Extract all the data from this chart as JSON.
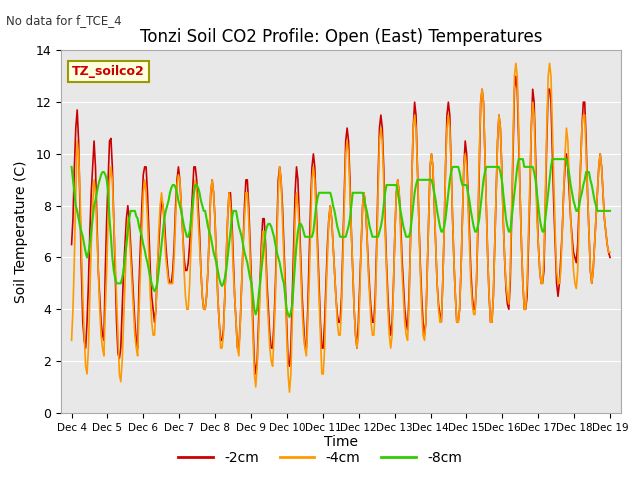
{
  "title": "Tonzi Soil CO2 Profile: Open (East) Temperatures",
  "subtitle": "No data for f_TCE_4",
  "xlabel": "Time",
  "ylabel": "Soil Temperature (C)",
  "legend_label": "TZ_soilco2",
  "series_labels": [
    "-2cm",
    "-4cm",
    "-8cm"
  ],
  "series_colors": [
    "#cc0000",
    "#ff9900",
    "#33cc00"
  ],
  "ylim": [
    0,
    14
  ],
  "xtick_labels": [
    "Dec 4",
    "Dec 5",
    "Dec 6",
    "Dec 7",
    "Dec 8",
    "Dec 9",
    "Dec 10",
    "Dec 11",
    "Dec 12",
    "Dec 13",
    "Dec 14",
    "Dec 15",
    "Dec 16",
    "Dec 17",
    "Dec 18",
    "Dec 19"
  ],
  "background_color": "#ffffff",
  "plot_bg_color": "#e8e8e8",
  "grid_color": "#ffffff",
  "t_2cm": [
    6.5,
    7.5,
    9.5,
    11.0,
    11.7,
    10.5,
    8.0,
    5.5,
    3.5,
    2.8,
    2.5,
    3.5,
    5.0,
    7.0,
    8.5,
    9.5,
    10.5,
    9.5,
    7.5,
    5.5,
    4.5,
    3.5,
    3.0,
    2.8,
    5.5,
    7.5,
    9.0,
    10.5,
    10.6,
    9.5,
    7.5,
    5.5,
    3.5,
    2.3,
    2.1,
    2.5,
    4.0,
    5.5,
    6.5,
    7.5,
    8.0,
    7.5,
    6.5,
    5.5,
    4.5,
    3.5,
    2.8,
    2.5,
    5.0,
    6.5,
    8.0,
    9.2,
    9.5,
    9.5,
    8.5,
    7.0,
    5.5,
    4.5,
    4.0,
    3.5,
    4.0,
    5.5,
    6.5,
    7.5,
    8.2,
    8.0,
    7.5,
    6.5,
    5.8,
    5.2,
    5.0,
    5.0,
    5.5,
    6.5,
    8.0,
    9.0,
    9.5,
    9.0,
    8.0,
    7.0,
    6.0,
    5.5,
    5.5,
    5.8,
    6.5,
    7.5,
    8.5,
    9.5,
    9.5,
    9.0,
    8.0,
    7.0,
    5.5,
    4.5,
    4.0,
    4.0,
    4.5,
    5.5,
    7.0,
    8.5,
    9.0,
    8.5,
    7.5,
    6.0,
    4.5,
    3.5,
    2.8,
    2.8,
    3.2,
    4.5,
    6.0,
    7.5,
    8.5,
    8.5,
    7.5,
    6.0,
    4.5,
    3.5,
    2.5,
    2.5,
    3.5,
    5.0,
    6.5,
    8.0,
    9.0,
    9.0,
    8.0,
    6.5,
    5.0,
    3.5,
    2.0,
    1.5,
    2.0,
    3.5,
    5.0,
    6.5,
    7.5,
    7.5,
    6.5,
    5.0,
    4.0,
    3.0,
    2.5,
    2.5,
    3.5,
    5.0,
    7.0,
    9.0,
    9.5,
    9.0,
    8.0,
    6.5,
    5.0,
    3.5,
    2.0,
    1.8,
    2.5,
    4.5,
    6.5,
    8.5,
    9.5,
    9.0,
    7.5,
    6.0,
    4.5,
    3.5,
    2.5,
    2.5,
    4.0,
    6.0,
    8.0,
    9.5,
    10.0,
    9.5,
    8.0,
    6.5,
    5.0,
    3.5,
    2.5,
    2.5,
    3.5,
    5.0,
    6.5,
    7.5,
    8.0,
    7.5,
    6.5,
    5.5,
    4.5,
    3.8,
    3.5,
    3.5,
    4.5,
    6.5,
    8.5,
    10.5,
    11.0,
    10.5,
    9.0,
    7.0,
    5.5,
    4.0,
    3.0,
    2.5,
    3.5,
    5.0,
    6.5,
    8.0,
    8.5,
    8.0,
    7.0,
    5.8,
    4.8,
    4.0,
    3.5,
    3.5,
    4.5,
    6.5,
    9.0,
    11.0,
    11.5,
    11.0,
    9.5,
    7.5,
    5.8,
    4.5,
    3.5,
    3.0,
    3.5,
    5.0,
    7.0,
    8.5,
    9.0,
    8.5,
    7.5,
    6.0,
    5.0,
    4.0,
    3.5,
    3.2,
    4.5,
    6.5,
    9.0,
    11.0,
    12.0,
    11.5,
    9.5,
    7.5,
    5.8,
    4.5,
    3.5,
    3.0,
    3.5,
    5.5,
    7.5,
    9.5,
    10.0,
    9.5,
    8.0,
    6.5,
    5.0,
    4.2,
    3.8,
    3.5,
    5.0,
    7.0,
    9.5,
    11.5,
    12.0,
    11.5,
    9.5,
    7.5,
    5.8,
    4.5,
    3.5,
    3.5,
    4.0,
    5.5,
    7.5,
    9.5,
    10.5,
    10.0,
    8.5,
    7.0,
    5.5,
    4.5,
    4.0,
    4.0,
    5.0,
    7.0,
    9.5,
    12.0,
    12.5,
    12.0,
    10.0,
    8.0,
    6.0,
    4.5,
    3.5,
    3.5,
    4.5,
    6.5,
    8.5,
    10.5,
    11.5,
    11.0,
    9.5,
    7.5,
    6.0,
    4.8,
    4.2,
    4.0,
    5.0,
    7.5,
    10.0,
    12.5,
    13.0,
    12.5,
    10.5,
    8.5,
    6.5,
    5.0,
    4.0,
    4.0,
    4.5,
    6.5,
    8.5,
    11.0,
    12.5,
    12.0,
    10.0,
    8.0,
    6.5,
    5.5,
    5.0,
    5.0,
    5.5,
    8.0,
    10.5,
    12.5,
    12.5,
    12.0,
    10.0,
    8.0,
    6.5,
    5.0,
    4.5,
    5.0,
    6.0,
    7.0,
    8.5,
    9.5,
    10.0,
    9.5,
    8.5,
    7.5,
    6.8,
    6.2,
    6.0,
    5.8,
    6.5,
    8.0,
    9.5,
    11.0,
    12.0,
    12.0,
    10.5,
    8.5,
    7.0,
    5.5,
    5.0,
    5.5,
    6.5,
    7.5,
    8.5,
    9.5,
    10.0,
    9.5,
    8.5,
    7.5,
    7.0,
    6.5,
    6.2,
    6.0
  ],
  "t_4cm": [
    2.8,
    4.0,
    6.0,
    8.5,
    10.5,
    10.0,
    8.5,
    6.5,
    4.5,
    3.0,
    1.8,
    1.5,
    2.5,
    4.5,
    6.5,
    8.0,
    9.0,
    8.5,
    7.0,
    5.5,
    4.0,
    3.0,
    2.5,
    2.2,
    4.0,
    5.5,
    7.5,
    9.0,
    9.5,
    9.0,
    7.5,
    6.0,
    4.5,
    3.0,
    1.5,
    1.2,
    2.0,
    3.5,
    5.0,
    6.5,
    7.5,
    7.0,
    6.0,
    5.0,
    4.0,
    3.0,
    2.5,
    2.2,
    4.0,
    5.5,
    7.0,
    8.5,
    9.0,
    8.5,
    7.5,
    6.0,
    4.5,
    3.5,
    3.0,
    3.0,
    4.0,
    5.5,
    7.0,
    8.0,
    8.5,
    8.0,
    7.0,
    6.0,
    5.5,
    5.0,
    5.0,
    5.0,
    5.0,
    6.0,
    7.5,
    8.8,
    9.2,
    9.0,
    8.0,
    7.0,
    5.5,
    4.5,
    4.0,
    4.0,
    5.0,
    6.5,
    7.5,
    8.5,
    9.0,
    8.5,
    7.5,
    6.5,
    5.5,
    4.5,
    4.0,
    4.0,
    4.5,
    5.5,
    7.0,
    8.5,
    9.0,
    8.5,
    7.5,
    6.0,
    4.5,
    3.5,
    2.5,
    2.5,
    3.0,
    4.5,
    6.0,
    7.5,
    8.5,
    8.0,
    7.0,
    5.5,
    4.5,
    3.5,
    2.5,
    2.2,
    3.5,
    5.0,
    6.5,
    7.5,
    8.5,
    8.5,
    7.5,
    6.0,
    4.5,
    3.0,
    1.5,
    1.0,
    1.8,
    3.0,
    4.5,
    6.0,
    7.0,
    7.0,
    6.0,
    4.5,
    3.5,
    2.5,
    2.0,
    1.8,
    3.0,
    4.5,
    6.5,
    8.5,
    9.5,
    9.0,
    7.5,
    6.0,
    4.5,
    3.0,
    1.5,
    0.8,
    1.5,
    3.5,
    5.5,
    7.5,
    8.5,
    8.0,
    7.0,
    5.5,
    4.0,
    3.0,
    2.5,
    2.2,
    3.5,
    5.0,
    7.0,
    9.0,
    9.5,
    9.0,
    7.5,
    6.0,
    4.5,
    3.0,
    1.5,
    1.5,
    2.5,
    4.5,
    6.0,
    7.5,
    8.0,
    7.5,
    6.5,
    5.5,
    4.5,
    3.5,
    3.0,
    3.0,
    4.0,
    6.0,
    8.0,
    10.0,
    10.5,
    10.0,
    8.5,
    7.0,
    5.5,
    4.0,
    3.0,
    2.5,
    3.0,
    4.5,
    6.5,
    8.0,
    8.5,
    8.0,
    7.0,
    5.5,
    4.5,
    3.5,
    3.0,
    3.0,
    4.0,
    6.0,
    8.5,
    10.5,
    11.0,
    10.5,
    9.0,
    7.0,
    5.5,
    4.0,
    3.0,
    2.5,
    3.0,
    5.0,
    7.0,
    8.5,
    9.0,
    8.5,
    7.0,
    5.5,
    4.5,
    3.5,
    3.0,
    2.8,
    4.0,
    6.5,
    9.0,
    11.0,
    11.5,
    11.0,
    9.5,
    7.5,
    5.5,
    4.0,
    3.0,
    2.8,
    3.5,
    5.5,
    7.5,
    9.5,
    10.0,
    9.5,
    8.0,
    6.5,
    5.0,
    4.0,
    3.5,
    3.5,
    5.0,
    7.0,
    9.5,
    11.0,
    11.5,
    11.0,
    9.5,
    7.5,
    5.8,
    4.5,
    3.5,
    3.5,
    4.0,
    5.5,
    7.5,
    9.5,
    10.0,
    9.5,
    8.0,
    6.5,
    5.0,
    4.2,
    3.8,
    3.8,
    5.0,
    7.5,
    10.0,
    12.0,
    12.5,
    12.0,
    10.0,
    8.0,
    6.0,
    4.5,
    3.5,
    3.5,
    4.5,
    6.5,
    8.5,
    10.5,
    11.5,
    11.0,
    9.5,
    7.5,
    6.0,
    5.0,
    4.5,
    4.2,
    5.5,
    8.0,
    10.5,
    13.0,
    13.5,
    13.0,
    11.0,
    8.5,
    6.5,
    5.0,
    4.0,
    4.0,
    5.0,
    7.0,
    9.0,
    11.0,
    12.0,
    11.5,
    9.5,
    7.5,
    6.5,
    5.5,
    5.0,
    5.0,
    6.0,
    8.5,
    11.0,
    13.0,
    13.5,
    13.0,
    11.0,
    9.0,
    7.0,
    5.5,
    5.0,
    5.0,
    5.5,
    7.0,
    8.5,
    10.0,
    11.0,
    10.5,
    9.0,
    7.5,
    6.5,
    5.5,
    5.0,
    4.8,
    5.5,
    7.5,
    9.5,
    11.0,
    11.5,
    11.5,
    10.0,
    8.5,
    7.0,
    5.5,
    5.0,
    5.5,
    6.5,
    7.5,
    8.5,
    9.5,
    10.0,
    9.5,
    8.5,
    7.5,
    7.0,
    6.5,
    6.2,
    6.2
  ],
  "t_8cm": [
    9.5,
    9.0,
    8.5,
    8.0,
    7.8,
    7.5,
    7.2,
    7.0,
    6.8,
    6.5,
    6.2,
    6.0,
    6.2,
    6.5,
    7.0,
    7.5,
    8.0,
    8.2,
    8.5,
    8.8,
    9.0,
    9.2,
    9.3,
    9.3,
    9.2,
    9.0,
    8.5,
    7.5,
    6.8,
    6.0,
    5.5,
    5.2,
    5.0,
    5.0,
    5.0,
    5.0,
    5.2,
    5.5,
    6.0,
    6.5,
    7.0,
    7.5,
    7.8,
    7.8,
    7.8,
    7.8,
    7.6,
    7.5,
    7.2,
    7.0,
    6.8,
    6.5,
    6.3,
    6.0,
    5.8,
    5.5,
    5.2,
    5.0,
    4.8,
    4.7,
    4.8,
    5.0,
    5.5,
    6.0,
    6.5,
    7.0,
    7.5,
    7.8,
    8.0,
    8.2,
    8.5,
    8.7,
    8.8,
    8.8,
    8.7,
    8.5,
    8.2,
    8.0,
    7.8,
    7.5,
    7.2,
    7.0,
    6.8,
    6.8,
    7.0,
    7.5,
    8.0,
    8.5,
    8.8,
    8.8,
    8.7,
    8.5,
    8.2,
    8.0,
    7.8,
    7.8,
    7.5,
    7.2,
    7.0,
    6.8,
    6.5,
    6.2,
    6.0,
    5.8,
    5.5,
    5.2,
    5.0,
    4.9,
    5.0,
    5.2,
    5.5,
    6.0,
    6.5,
    7.0,
    7.5,
    7.8,
    7.8,
    7.8,
    7.5,
    7.2,
    7.0,
    6.8,
    6.5,
    6.2,
    6.0,
    5.8,
    5.5,
    5.2,
    5.0,
    4.5,
    4.0,
    3.8,
    4.0,
    4.5,
    5.0,
    5.5,
    6.0,
    6.5,
    7.0,
    7.2,
    7.3,
    7.3,
    7.2,
    7.0,
    6.8,
    6.5,
    6.2,
    6.0,
    5.8,
    5.5,
    5.2,
    5.0,
    4.5,
    4.0,
    3.8,
    3.7,
    3.9,
    4.2,
    5.0,
    5.8,
    6.5,
    7.0,
    7.3,
    7.3,
    7.2,
    7.0,
    6.8,
    6.8,
    6.8,
    6.8,
    6.8,
    6.8,
    7.0,
    7.5,
    8.0,
    8.3,
    8.5,
    8.5,
    8.5,
    8.5,
    8.5,
    8.5,
    8.5,
    8.5,
    8.5,
    8.3,
    8.0,
    7.8,
    7.5,
    7.2,
    7.0,
    6.8,
    6.8,
    6.8,
    6.8,
    6.8,
    7.0,
    7.2,
    7.5,
    8.0,
    8.5,
    8.5,
    8.5,
    8.5,
    8.5,
    8.5,
    8.5,
    8.5,
    8.3,
    8.0,
    7.8,
    7.5,
    7.2,
    7.0,
    6.8,
    6.8,
    6.8,
    6.8,
    6.8,
    7.0,
    7.2,
    7.5,
    8.0,
    8.5,
    8.8,
    8.8,
    8.8,
    8.8,
    8.8,
    8.8,
    8.8,
    8.8,
    8.5,
    8.2,
    7.8,
    7.5,
    7.2,
    7.0,
    6.8,
    6.8,
    6.8,
    7.0,
    7.5,
    8.0,
    8.5,
    8.8,
    9.0,
    9.0,
    9.0,
    9.0,
    9.0,
    9.0,
    9.0,
    9.0,
    9.0,
    9.0,
    9.0,
    8.8,
    8.5,
    8.2,
    7.8,
    7.5,
    7.2,
    7.0,
    7.0,
    7.2,
    7.5,
    8.0,
    8.5,
    9.0,
    9.3,
    9.5,
    9.5,
    9.5,
    9.5,
    9.5,
    9.3,
    9.0,
    8.8,
    8.8,
    8.8,
    8.8,
    8.5,
    8.2,
    7.8,
    7.5,
    7.2,
    7.0,
    7.0,
    7.2,
    7.5,
    8.0,
    8.5,
    9.0,
    9.3,
    9.5,
    9.5,
    9.5,
    9.5,
    9.5,
    9.5,
    9.5,
    9.5,
    9.5,
    9.5,
    9.3,
    9.0,
    8.5,
    8.0,
    7.5,
    7.2,
    7.0,
    7.0,
    7.5,
    8.0,
    8.5,
    9.0,
    9.5,
    9.8,
    9.8,
    9.8,
    9.8,
    9.5,
    9.5,
    9.5,
    9.5,
    9.5,
    9.5,
    9.5,
    9.3,
    9.0,
    8.5,
    8.0,
    7.5,
    7.2,
    7.0,
    7.0,
    7.5,
    8.0,
    8.5,
    9.0,
    9.5,
    9.8,
    9.8,
    9.8,
    9.8,
    9.8,
    9.8,
    9.8,
    9.8,
    9.8,
    9.8,
    9.8,
    9.5,
    9.2,
    8.8,
    8.5,
    8.2,
    8.0,
    7.8,
    7.8,
    8.0,
    8.3,
    8.5,
    8.8,
    9.0,
    9.3,
    9.3,
    9.3,
    9.0,
    8.8,
    8.5,
    8.2,
    8.0,
    7.8,
    7.8,
    7.8,
    7.8,
    7.8,
    7.8,
    7.8,
    7.8,
    7.8,
    7.8
  ]
}
